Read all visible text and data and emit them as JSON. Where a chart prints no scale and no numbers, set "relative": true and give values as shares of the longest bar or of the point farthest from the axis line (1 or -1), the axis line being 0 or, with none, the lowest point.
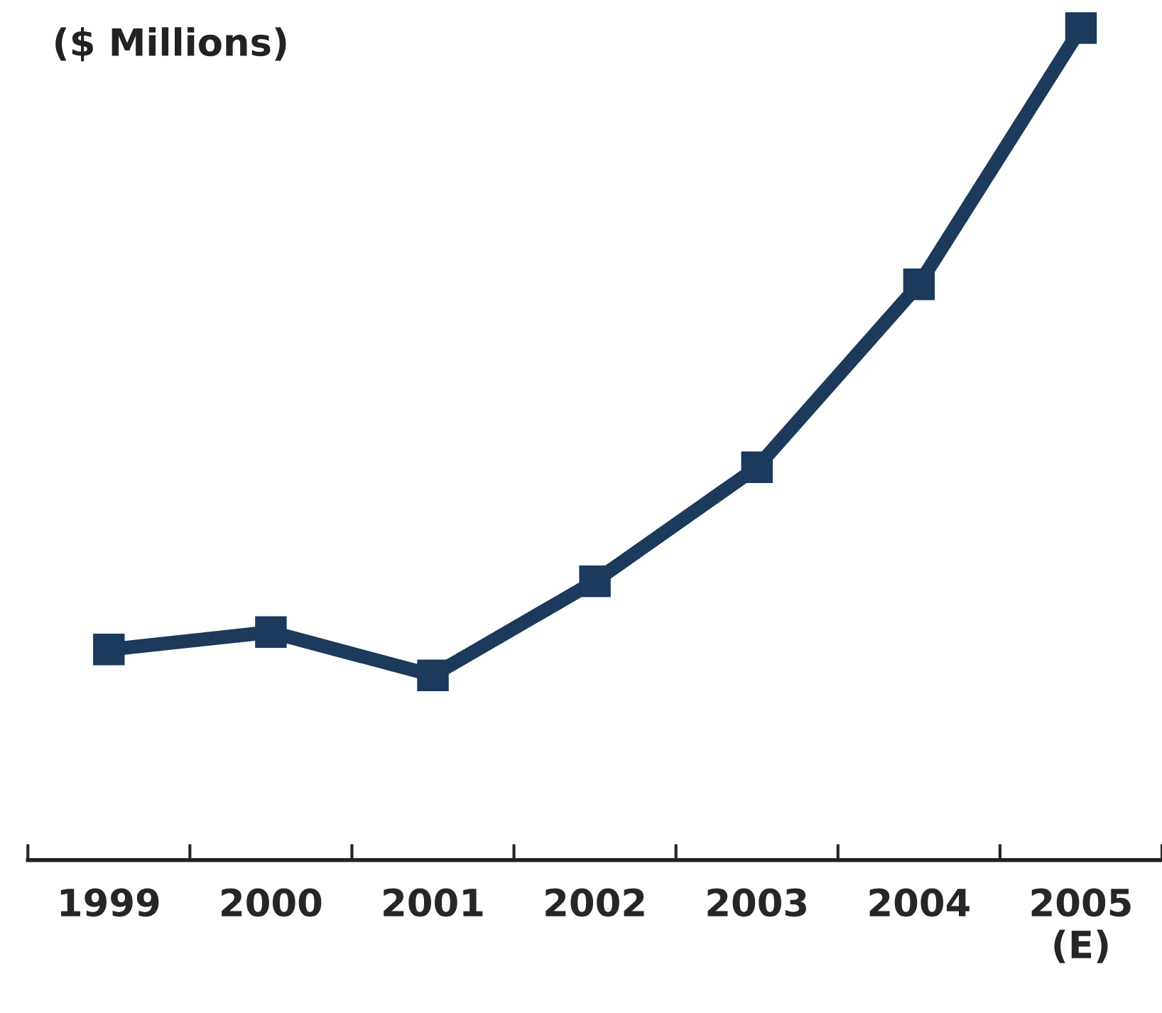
{
  "chart_data": {
    "type": "line",
    "title": "($ Millions)",
    "relative": true,
    "categories": [
      "1999",
      "2000",
      "2001",
      "2002",
      "2003",
      "2004",
      "2005\n(E)"
    ],
    "series": [
      {
        "color": "#1b3a5c",
        "values": [
          0.253,
          0.274,
          0.222,
          0.335,
          0.472,
          0.692,
          1.0
        ]
      }
    ],
    "marker": "square",
    "line_style": "solid",
    "grid": false,
    "legend": false
  }
}
